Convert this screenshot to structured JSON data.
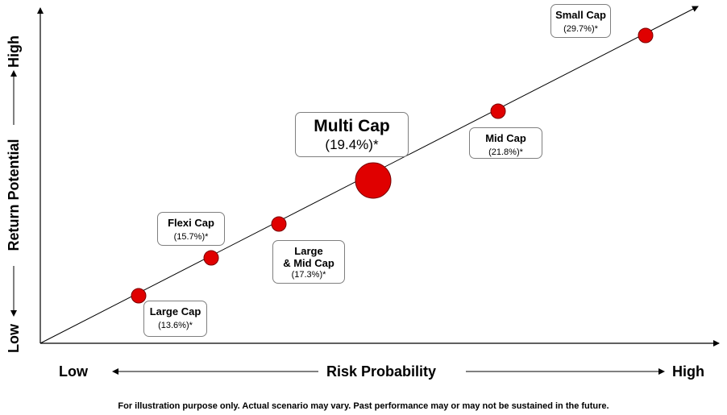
{
  "chart_data": {
    "type": "scatter",
    "xlabel": "Risk Probability",
    "ylabel": "Return Potential",
    "x_axis_ends": {
      "low": "Low",
      "high": "High"
    },
    "y_axis_ends": {
      "low": "Low",
      "high": "High"
    },
    "series": [
      {
        "points": [
          {
            "category": "Large Cap",
            "label": "(13.6%)*",
            "return_pct": 13.6,
            "highlighted": false
          },
          {
            "category": "Flexi Cap",
            "label": "(15.7%)*",
            "return_pct": 15.7,
            "highlighted": false
          },
          {
            "category": "Large\n& Mid Cap",
            "label": "(17.3%)*",
            "return_pct": 17.3,
            "highlighted": false
          },
          {
            "category": "Multi Cap",
            "label": "(19.4%)*",
            "return_pct": 19.4,
            "highlighted": true
          },
          {
            "category": "Mid Cap",
            "label": "(21.8%)*",
            "return_pct": 21.8,
            "highlighted": false
          },
          {
            "category": "Small Cap",
            "label": "(29.7%)*",
            "return_pct": 29.7,
            "highlighted": false
          }
        ]
      }
    ],
    "colors": {
      "point": "#e00000",
      "point_outline": "#7a0000",
      "line": "#000000",
      "box_border": "#7f7f7f"
    },
    "footnote": "For illustration purpose only. Actual scenario may vary. Past performance may or may not be sustained in the future."
  }
}
